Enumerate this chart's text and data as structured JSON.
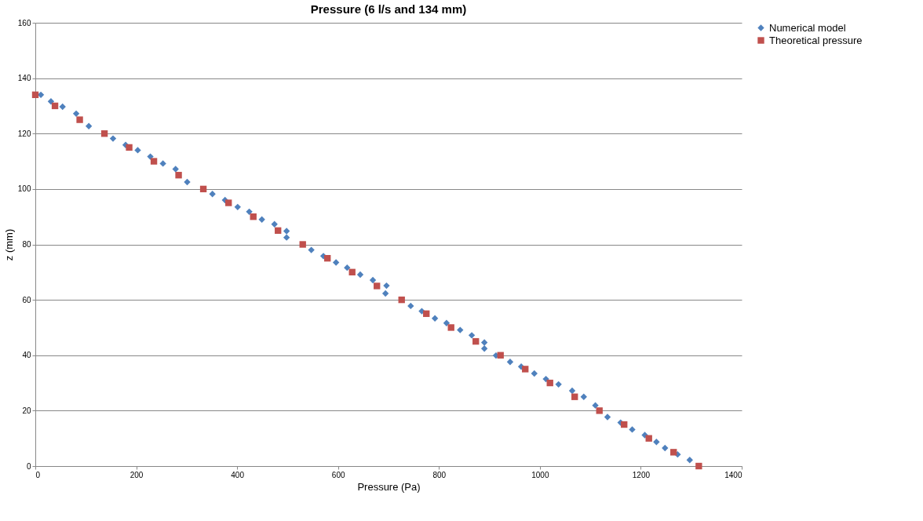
{
  "chart_data": {
    "type": "scatter",
    "title": "Pressure (6 l/s and 134 mm)",
    "xlabel": "Pressure (Pa)",
    "ylabel": "z (mm)",
    "xlim": [
      0,
      1400
    ],
    "xticks": [
      0,
      200,
      400,
      600,
      800,
      1000,
      1200,
      1400
    ],
    "ylim": [
      0,
      160
    ],
    "yticks": [
      0,
      20,
      40,
      60,
      80,
      100,
      120,
      140,
      160
    ],
    "grid": "y",
    "legend": "right",
    "series": [
      {
        "name": "Numerical model",
        "color": "#4f81bd",
        "marker": "diamond",
        "x": [
          11,
          31,
          54,
          81,
          106,
          154,
          179,
          203,
          228,
          253,
          278,
          301,
          351,
          376,
          401,
          424,
          449,
          474,
          498,
          498,
          547,
          571,
          596,
          618,
          644,
          669,
          696,
          694,
          744,
          766,
          792,
          815,
          842,
          865,
          890,
          890,
          913,
          941,
          963,
          989,
          1012,
          1037,
          1064,
          1087,
          1110,
          1134,
          1160,
          1183,
          1208,
          1231,
          1248,
          1273,
          1297
        ],
        "values": [
          134,
          131.6,
          129.7,
          127.2,
          122.7,
          118.2,
          115.9,
          114,
          111.7,
          109.2,
          107.2,
          102.5,
          98.2,
          96,
          93.5,
          91.8,
          89,
          87.3,
          84.8,
          82.5,
          78,
          75.8,
          73.5,
          71.6,
          69.1,
          67.1,
          65.1,
          62.3,
          57.8,
          55.9,
          53.3,
          51.6,
          49.1,
          47.2,
          44.6,
          42.4,
          39.9,
          37.6,
          35.9,
          33.4,
          31.4,
          29.5,
          27.2,
          25,
          21.9,
          17.7,
          15.7,
          13.2,
          11.2,
          8.7,
          6.5,
          4.2,
          2.2
        ]
      },
      {
        "name": "Theoretical pressure",
        "color": "#c0504d",
        "marker": "square",
        "x": [
          0,
          39,
          88,
          137,
          186,
          235,
          284,
          333,
          383,
          432,
          481,
          530,
          579,
          628,
          677,
          726,
          775,
          824,
          873,
          922,
          971,
          1020,
          1069,
          1118,
          1167,
          1216,
          1265,
          1315
        ],
        "values": [
          134,
          130,
          125,
          120,
          115,
          110,
          105,
          100,
          95,
          90,
          85,
          80,
          75,
          70,
          65,
          60,
          55,
          50,
          45,
          40,
          35,
          30,
          25,
          20,
          15,
          10,
          5,
          0
        ]
      }
    ]
  }
}
